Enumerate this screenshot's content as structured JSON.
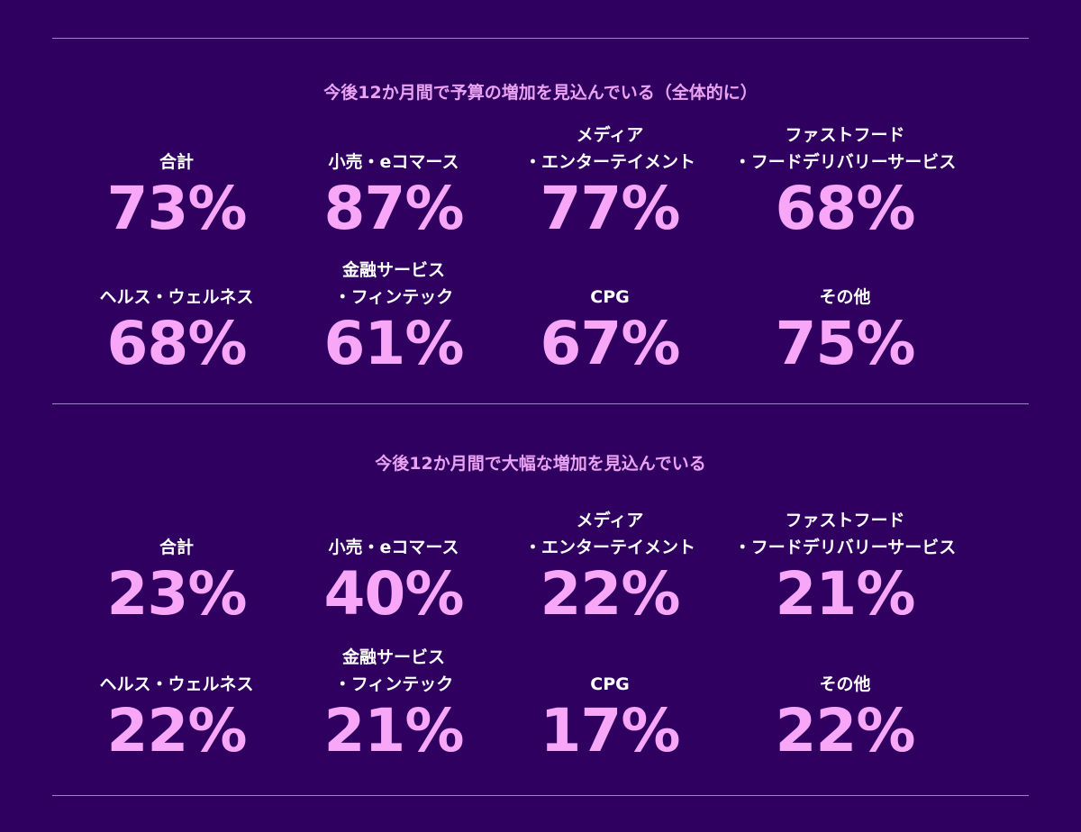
{
  "sections": [
    {
      "title": "今後12か月間で予算の増加を見込んでいる（全体的に）",
      "rows": [
        [
          {
            "l1": "",
            "l2": "合計",
            "value": "73%"
          },
          {
            "l1": "",
            "l2": "小売・eコマース",
            "value": "87%"
          },
          {
            "l1": "メディア",
            "l2": "・エンターテイメント",
            "value": "77%"
          },
          {
            "l1": "ファストフード",
            "l2": "・フードデリバリーサービス",
            "value": "68%"
          }
        ],
        [
          {
            "l1": "",
            "l2": "ヘルス・ウェルネス",
            "value": "68%"
          },
          {
            "l1": "金融サービス",
            "l2": "・フィンテック",
            "value": "61%"
          },
          {
            "l1": "",
            "l2": "CPG",
            "value": "67%"
          },
          {
            "l1": "",
            "l2": "その他",
            "value": "75%"
          }
        ]
      ]
    },
    {
      "title": "今後12か月間で大幅な増加を見込んでいる",
      "rows": [
        [
          {
            "l1": "",
            "l2": "合計",
            "value": "23%"
          },
          {
            "l1": "",
            "l2": "小売・eコマース",
            "value": "40%"
          },
          {
            "l1": "メディア",
            "l2": "・エンターテイメント",
            "value": "22%"
          },
          {
            "l1": "ファストフード",
            "l2": "・フードデリバリーサービス",
            "value": "21%"
          }
        ],
        [
          {
            "l1": "",
            "l2": "ヘルス・ウェルネス",
            "value": "22%"
          },
          {
            "l1": "金融サービス",
            "l2": "・フィンテック",
            "value": "21%"
          },
          {
            "l1": "",
            "l2": "CPG",
            "value": "17%"
          },
          {
            "l1": "",
            "l2": "その他",
            "value": "22%"
          }
        ]
      ]
    }
  ]
}
